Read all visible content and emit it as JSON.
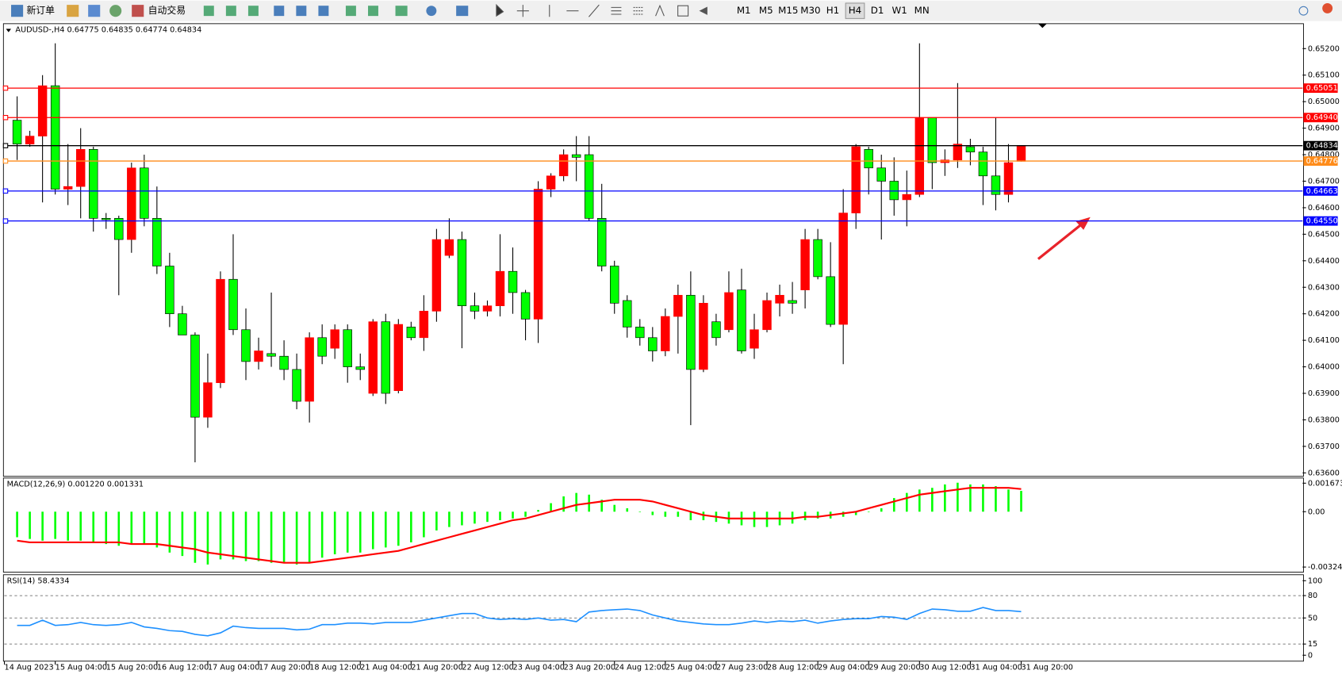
{
  "toolbar": {
    "buttons": [
      "新订单",
      "自动交易"
    ],
    "timeframes": [
      "M1",
      "M5",
      "M15",
      "M30",
      "H1",
      "H4",
      "D1",
      "W1",
      "MN"
    ],
    "active_timeframe": "H4"
  },
  "chart_data": [
    {
      "type": "candlestick",
      "title": "AUDUSD-,H4  0.64775 0.64835 0.64774 0.64834",
      "open": [
        0.6493,
        0.6484,
        0.6487,
        0.6506,
        0.6467,
        0.6468,
        0.6482,
        0.6456,
        0.6456,
        0.6448,
        0.6475,
        0.6456,
        0.6438,
        0.642,
        0.6412,
        0.6381,
        0.6394,
        0.6433,
        0.6414,
        0.6402,
        0.6405,
        0.6404,
        0.6399,
        0.6387,
        0.6411,
        0.6407,
        0.6414,
        0.64,
        0.639,
        0.6417,
        0.6391,
        0.6415,
        0.6411,
        0.6421,
        0.6442,
        0.6448,
        0.6423,
        0.6421,
        0.6423,
        0.6436,
        0.6428,
        0.6418,
        0.6467,
        0.6472,
        0.648,
        0.648,
        0.6456,
        0.6438,
        0.6425,
        0.6415,
        0.6411,
        0.6406,
        0.6419,
        0.6427,
        0.6399,
        0.6417,
        0.6414,
        0.6429,
        0.6407,
        0.6414,
        0.6424,
        0.6425,
        0.6429,
        0.6448,
        0.6434,
        0.6416,
        0.6458,
        0.6482,
        0.6475,
        0.647,
        0.6463,
        0.6465,
        0.6494,
        0.6477,
        0.6478,
        0.6483,
        0.6481,
        0.6472,
        0.6465,
        0.64775
      ],
      "high": [
        0.6502,
        0.6489,
        0.651,
        0.6522,
        0.6484,
        0.649,
        0.6483,
        0.6458,
        0.6457,
        0.6477,
        0.648,
        0.6468,
        0.6443,
        0.6423,
        0.6413,
        0.6405,
        0.6436,
        0.645,
        0.6422,
        0.6411,
        0.6428,
        0.641,
        0.6405,
        0.6413,
        0.6416,
        0.6416,
        0.6416,
        0.6405,
        0.6418,
        0.642,
        0.6418,
        0.6417,
        0.6427,
        0.6452,
        0.6456,
        0.6451,
        0.6428,
        0.6425,
        0.645,
        0.6445,
        0.6429,
        0.647,
        0.6473,
        0.6482,
        0.6487,
        0.6487,
        0.6469,
        0.644,
        0.6427,
        0.6418,
        0.6415,
        0.6422,
        0.6431,
        0.6436,
        0.6427,
        0.642,
        0.6436,
        0.6437,
        0.642,
        0.6428,
        0.6431,
        0.6432,
        0.6452,
        0.6452,
        0.6447,
        0.6467,
        0.6484,
        0.6483,
        0.648,
        0.6479,
        0.6474,
        0.6522,
        0.6494,
        0.6482,
        0.6507,
        0.6486,
        0.6483,
        0.6494,
        0.6484,
        0.64835
      ],
      "low": [
        0.6478,
        0.6483,
        0.6462,
        0.6465,
        0.6461,
        0.6456,
        0.6451,
        0.6452,
        0.6427,
        0.6443,
        0.6453,
        0.6435,
        0.6415,
        0.6412,
        0.6364,
        0.6377,
        0.6392,
        0.6412,
        0.6395,
        0.6399,
        0.64,
        0.6395,
        0.6384,
        0.6379,
        0.6401,
        0.6403,
        0.6394,
        0.6395,
        0.6389,
        0.6386,
        0.639,
        0.641,
        0.6406,
        0.6417,
        0.6441,
        0.6407,
        0.6418,
        0.6419,
        0.6419,
        0.642,
        0.641,
        0.6409,
        0.6464,
        0.647,
        0.647,
        0.6455,
        0.6436,
        0.642,
        0.6411,
        0.6408,
        0.6402,
        0.6404,
        0.6405,
        0.6378,
        0.6398,
        0.6408,
        0.6413,
        0.6405,
        0.6403,
        0.6413,
        0.6419,
        0.642,
        0.6422,
        0.6433,
        0.6415,
        0.6401,
        0.6452,
        0.6465,
        0.6448,
        0.6457,
        0.6453,
        0.6464,
        0.6467,
        0.6472,
        0.6475,
        0.6476,
        0.6461,
        0.6459,
        0.6462,
        0.64774
      ],
      "close": [
        0.6484,
        0.6487,
        0.6506,
        0.6467,
        0.6468,
        0.6482,
        0.6456,
        0.64555,
        0.6448,
        0.6475,
        0.6456,
        0.6438,
        0.642,
        0.6412,
        0.6381,
        0.6394,
        0.6433,
        0.6414,
        0.6402,
        0.6406,
        0.6404,
        0.6399,
        0.6387,
        0.6411,
        0.6404,
        0.6414,
        0.64,
        0.6399,
        0.6417,
        0.639,
        0.6416,
        0.6411,
        0.6421,
        0.6448,
        0.6448,
        0.6423,
        0.6421,
        0.6423,
        0.6436,
        0.6428,
        0.6418,
        0.6467,
        0.6472,
        0.648,
        0.6479,
        0.6456,
        0.6438,
        0.6424,
        0.6415,
        0.6411,
        0.6406,
        0.6419,
        0.6427,
        0.6399,
        0.6424,
        0.6411,
        0.6428,
        0.6406,
        0.6414,
        0.6425,
        0.6427,
        0.6424,
        0.6448,
        0.6434,
        0.6416,
        0.6458,
        0.6483,
        0.6475,
        0.647,
        0.6463,
        0.6465,
        0.6494,
        0.6477,
        0.6478,
        0.6484,
        0.6481,
        0.6472,
        0.6465,
        0.6477,
        0.64834
      ],
      "up_color": "#ff0000",
      "down_color": "#00ff00",
      "wick_color": "#000000",
      "ylim": [
        0.63587,
        0.65294
      ],
      "yticks": [
        {
          "value": 0.652,
          "label": "0.65200"
        },
        {
          "value": 0.651,
          "label": "0.65100"
        },
        {
          "value": 0.65,
          "label": "0.65000"
        },
        {
          "value": 0.649,
          "label": "0.64900"
        },
        {
          "value": 0.648,
          "label": "0.64800"
        },
        {
          "value": 0.647,
          "label": "0.64700"
        },
        {
          "value": 0.646,
          "label": "0.64600"
        },
        {
          "value": 0.645,
          "label": "0.64500"
        },
        {
          "value": 0.644,
          "label": "0.64400"
        },
        {
          "value": 0.643,
          "label": "0.64300"
        },
        {
          "value": 0.642,
          "label": "0.64200"
        },
        {
          "value": 0.641,
          "label": "0.64100"
        },
        {
          "value": 0.64,
          "label": "0.64000"
        },
        {
          "value": 0.639,
          "label": "0.63900"
        },
        {
          "value": 0.638,
          "label": "0.63800"
        },
        {
          "value": 0.637,
          "label": "0.63700"
        },
        {
          "value": 0.636,
          "label": "0.63600"
        }
      ],
      "levels": [
        {
          "value": 0.65051,
          "color": "#ff0000"
        },
        {
          "value": 0.6494,
          "label": "0.64940",
          "color": "#ff0000"
        },
        {
          "value": 0.64834,
          "color": "#000000"
        },
        {
          "value": 0.64776,
          "color": "#ff8c1a"
        },
        {
          "value": 0.64663,
          "color": "#0000ff"
        },
        {
          "value": 0.6455,
          "label": "0.64550",
          "color": "#0000ff"
        }
      ],
      "x_labels": [
        "14 Aug 2023",
        "15 Aug 04:00",
        "15 Aug 20:00",
        "16 Aug 12:00",
        "17 Aug 04:00",
        "17 Aug 20:00",
        "18 Aug 12:00",
        "21 Aug 04:00",
        "21 Aug 20:00",
        "22 Aug 12:00",
        "23 Aug 04:00",
        "23 Aug 20:00",
        "24 Aug 12:00",
        "25 Aug 04:00",
        "27 Aug 23:00",
        "28 Aug 12:00",
        "29 Aug 04:00",
        "29 Aug 20:00",
        "30 Aug 12:00",
        "31 Aug 04:00",
        "31 Aug 20:00"
      ]
    },
    {
      "type": "macd",
      "title": "MACD(12,26,9) 0.001220 0.001331",
      "histogram": [
        -0.0015,
        -0.0016,
        -0.0017,
        -0.0016,
        -0.0017,
        -0.0017,
        -0.0018,
        -0.0019,
        -0.002,
        -0.0019,
        -0.0019,
        -0.0021,
        -0.0024,
        -0.0026,
        -0.003,
        -0.0031,
        -0.0028,
        -0.0028,
        -0.0029,
        -0.0029,
        -0.003,
        -0.003,
        -0.0031,
        -0.003,
        -0.0027,
        -0.0025,
        -0.0024,
        -0.0024,
        -0.0022,
        -0.0021,
        -0.002,
        -0.0018,
        -0.0015,
        -0.0011,
        -0.0009,
        -0.0008,
        -0.0007,
        -0.0006,
        -0.0005,
        -0.0004,
        -0.0003,
        0.0001,
        0.0005,
        0.0009,
        0.0011,
        0.001,
        0.0007,
        0.0004,
        0.0002,
        0,
        -0.0002,
        -0.0003,
        -0.0003,
        -0.0005,
        -0.0005,
        -0.0006,
        -0.0007,
        -0.0008,
        -0.0009,
        -0.0009,
        -0.0008,
        -0.0007,
        -0.0005,
        -0.0004,
        -0.0004,
        -0.0003,
        -0.0002,
        0,
        0.0002,
        0.0008,
        0.0011,
        0.0013,
        0.0014,
        0.0016,
        0.0017,
        0.0016,
        0.0016,
        0.0015,
        0.0013,
        0.00122
      ],
      "signal": [
        -0.0017,
        -0.0018,
        -0.0018,
        -0.0018,
        -0.0018,
        -0.0018,
        -0.0018,
        -0.0018,
        -0.0018,
        -0.0019,
        -0.0019,
        -0.0019,
        -0.002,
        -0.0021,
        -0.0022,
        -0.0024,
        -0.0025,
        -0.0026,
        -0.0027,
        -0.0028,
        -0.0029,
        -0.003,
        -0.003,
        -0.003,
        -0.0029,
        -0.0028,
        -0.0027,
        -0.0026,
        -0.0025,
        -0.0024,
        -0.0023,
        -0.0021,
        -0.0019,
        -0.0017,
        -0.0015,
        -0.0013,
        -0.0011,
        -0.0009,
        -0.0007,
        -0.0005,
        -0.0004,
        -0.0002,
        0,
        0.0002,
        0.0004,
        0.0005,
        0.0006,
        0.0007,
        0.0007,
        0.0007,
        0.0006,
        0.0004,
        0.0002,
        0,
        -0.0002,
        -0.0003,
        -0.0004,
        -0.0004,
        -0.0004,
        -0.0004,
        -0.0004,
        -0.0004,
        -0.0003,
        -0.0003,
        -0.0002,
        -0.0001,
        0,
        0.0002,
        0.0004,
        0.0006,
        0.0008,
        0.001,
        0.0011,
        0.0012,
        0.0013,
        0.0014,
        0.0014,
        0.0014,
        0.0014,
        0.001331
      ],
      "histogram_color": "#00ff00",
      "signal_color": "#ff0000",
      "ylim": [
        -0.00355,
        0.001974
      ],
      "yticks": [
        0.001673,
        {
          "value": 0,
          "label": "0.00"
        },
        -0.003249
      ]
    },
    {
      "type": "line",
      "title": "RSI(14) 58.4334",
      "values": [
        40,
        40,
        47,
        40,
        41,
        44,
        41,
        40,
        41,
        44,
        38,
        36,
        33,
        32,
        28,
        26,
        30,
        39,
        37,
        36,
        36,
        36,
        34,
        35,
        41,
        41,
        43,
        43,
        42,
        44,
        44,
        44,
        47,
        50,
        53,
        56,
        56,
        50,
        48,
        49,
        48,
        50,
        47,
        48,
        45,
        58,
        60,
        61,
        62,
        60,
        54,
        50,
        46,
        44,
        42,
        41,
        41,
        43,
        46,
        44,
        46,
        45,
        47,
        43,
        46,
        48,
        49,
        49,
        52,
        51,
        48,
        56,
        62,
        61,
        59,
        59,
        64,
        60,
        60,
        58.4334
      ],
      "color": "#1e90ff",
      "ylim": [
        -8,
        108
      ],
      "yticks": [
        100,
        80,
        50,
        15,
        0
      ],
      "dashed_levels": [
        80,
        50,
        15
      ]
    }
  ]
}
